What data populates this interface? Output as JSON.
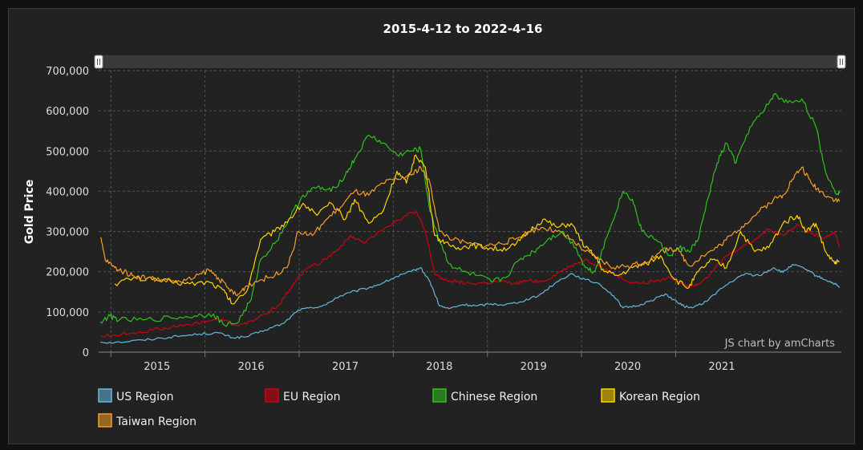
{
  "chart_data": {
    "type": "line",
    "title": "2015-4-12 to 2022-4-16",
    "ylabel": "Gold Price",
    "xlabel": "",
    "ylim": [
      0,
      700000
    ],
    "y_ticks": [
      0,
      100000,
      200000,
      300000,
      400000,
      500000,
      600000,
      700000
    ],
    "y_tick_labels": [
      "0",
      "100,000",
      "200,000",
      "300,000",
      "400,000",
      "500,000",
      "600,000",
      "700,000"
    ],
    "x_ticks": [
      "2015",
      "2016",
      "2017",
      "2018",
      "2019",
      "2020",
      "2021"
    ],
    "grid": true,
    "legend_position": "bottom",
    "credit": "JS chart by amCharts",
    "series": [
      {
        "name": "US Region",
        "color": "#67b7dc",
        "points": [
          [
            2014.85,
            25000
          ],
          [
            2015.0,
            24000
          ],
          [
            2015.3,
            30000
          ],
          [
            2015.5,
            35000
          ],
          [
            2015.7,
            40000
          ],
          [
            2015.9,
            45000
          ],
          [
            2016.1,
            48000
          ],
          [
            2016.25,
            36000
          ],
          [
            2016.4,
            38000
          ],
          [
            2016.6,
            55000
          ],
          [
            2016.8,
            72000
          ],
          [
            2016.95,
            105000
          ],
          [
            2017.1,
            110000
          ],
          [
            2017.25,
            118000
          ],
          [
            2017.35,
            135000
          ],
          [
            2017.5,
            148000
          ],
          [
            2017.7,
            160000
          ],
          [
            2017.85,
            172000
          ],
          [
            2018.0,
            188000
          ],
          [
            2018.15,
            200000
          ],
          [
            2018.25,
            210000
          ],
          [
            2018.35,
            175000
          ],
          [
            2018.45,
            115000
          ],
          [
            2018.55,
            108000
          ],
          [
            2018.7,
            118000
          ],
          [
            2018.85,
            115000
          ],
          [
            2019.0,
            120000
          ],
          [
            2019.15,
            118000
          ],
          [
            2019.3,
            125000
          ],
          [
            2019.5,
            140000
          ],
          [
            2019.7,
            175000
          ],
          [
            2019.85,
            195000
          ],
          [
            2020.0,
            180000
          ],
          [
            2020.15,
            170000
          ],
          [
            2020.3,
            140000
          ],
          [
            2020.4,
            110000
          ],
          [
            2020.55,
            115000
          ],
          [
            2020.7,
            128000
          ],
          [
            2020.85,
            145000
          ],
          [
            2021.0,
            120000
          ],
          [
            2021.1,
            110000
          ],
          [
            2021.25,
            120000
          ],
          [
            2021.4,
            150000
          ],
          [
            2021.55,
            175000
          ],
          [
            2021.7,
            195000
          ],
          [
            2021.85,
            190000
          ],
          [
            2022.0,
            210000
          ],
          [
            2022.1,
            198000
          ],
          [
            2022.2,
            218000
          ],
          [
            2022.35,
            205000
          ],
          [
            2022.45,
            190000
          ],
          [
            2022.55,
            180000
          ],
          [
            2022.65,
            170000
          ],
          [
            2022.7,
            160000
          ]
        ]
      },
      {
        "name": "EU Region",
        "color": "#d1000f",
        "points": [
          [
            2014.85,
            40000
          ],
          [
            2015.0,
            42000
          ],
          [
            2015.2,
            48000
          ],
          [
            2015.4,
            55000
          ],
          [
            2015.6,
            62000
          ],
          [
            2015.8,
            68000
          ],
          [
            2016.0,
            78000
          ],
          [
            2016.15,
            82000
          ],
          [
            2016.25,
            68000
          ],
          [
            2016.4,
            70000
          ],
          [
            2016.6,
            95000
          ],
          [
            2016.75,
            118000
          ],
          [
            2016.9,
            170000
          ],
          [
            2017.05,
            210000
          ],
          [
            2017.2,
            225000
          ],
          [
            2017.35,
            250000
          ],
          [
            2017.5,
            290000
          ],
          [
            2017.65,
            270000
          ],
          [
            2017.8,
            300000
          ],
          [
            2017.95,
            320000
          ],
          [
            2018.1,
            340000
          ],
          [
            2018.2,
            350000
          ],
          [
            2018.3,
            300000
          ],
          [
            2018.4,
            195000
          ],
          [
            2018.5,
            180000
          ],
          [
            2018.65,
            175000
          ],
          [
            2018.8,
            170000
          ],
          [
            2018.95,
            172000
          ],
          [
            2019.1,
            175000
          ],
          [
            2019.25,
            170000
          ],
          [
            2019.4,
            178000
          ],
          [
            2019.55,
            175000
          ],
          [
            2019.7,
            195000
          ],
          [
            2019.85,
            215000
          ],
          [
            2020.0,
            230000
          ],
          [
            2020.15,
            215000
          ],
          [
            2020.3,
            195000
          ],
          [
            2020.45,
            175000
          ],
          [
            2020.6,
            170000
          ],
          [
            2020.75,
            178000
          ],
          [
            2020.9,
            185000
          ],
          [
            2021.0,
            175000
          ],
          [
            2021.1,
            165000
          ],
          [
            2021.2,
            170000
          ],
          [
            2021.35,
            200000
          ],
          [
            2021.5,
            240000
          ],
          [
            2021.65,
            260000
          ],
          [
            2021.8,
            280000
          ],
          [
            2021.95,
            305000
          ],
          [
            2022.1,
            290000
          ],
          [
            2022.25,
            318000
          ],
          [
            2022.4,
            295000
          ],
          [
            2022.55,
            285000
          ],
          [
            2022.65,
            300000
          ],
          [
            2022.7,
            260000
          ]
        ]
      },
      {
        "name": "Chinese Region",
        "color": "#2ec21b",
        "points": [
          [
            2014.85,
            75000
          ],
          [
            2014.95,
            90000
          ],
          [
            2015.05,
            80000
          ],
          [
            2015.3,
            80000
          ],
          [
            2015.6,
            85000
          ],
          [
            2015.85,
            90000
          ],
          [
            2016.05,
            95000
          ],
          [
            2016.15,
            70000
          ],
          [
            2016.3,
            72000
          ],
          [
            2016.45,
            130000
          ],
          [
            2016.55,
            230000
          ],
          [
            2016.7,
            270000
          ],
          [
            2016.85,
            330000
          ],
          [
            2017.0,
            390000
          ],
          [
            2017.15,
            410000
          ],
          [
            2017.3,
            400000
          ],
          [
            2017.45,
            440000
          ],
          [
            2017.55,
            480000
          ],
          [
            2017.7,
            540000
          ],
          [
            2017.85,
            520000
          ],
          [
            2018.0,
            490000
          ],
          [
            2018.15,
            500000
          ],
          [
            2018.25,
            505000
          ],
          [
            2018.35,
            350000
          ],
          [
            2018.45,
            280000
          ],
          [
            2018.55,
            220000
          ],
          [
            2018.7,
            200000
          ],
          [
            2018.85,
            190000
          ],
          [
            2019.0,
            175000
          ],
          [
            2019.15,
            185000
          ],
          [
            2019.3,
            230000
          ],
          [
            2019.45,
            250000
          ],
          [
            2019.6,
            280000
          ],
          [
            2019.75,
            300000
          ],
          [
            2019.9,
            260000
          ],
          [
            2020.0,
            210000
          ],
          [
            2020.1,
            200000
          ],
          [
            2020.25,
            300000
          ],
          [
            2020.4,
            400000
          ],
          [
            2020.5,
            380000
          ],
          [
            2020.6,
            300000
          ],
          [
            2020.75,
            280000
          ],
          [
            2020.9,
            240000
          ],
          [
            2021.0,
            260000
          ],
          [
            2021.1,
            250000
          ],
          [
            2021.2,
            280000
          ],
          [
            2021.3,
            380000
          ],
          [
            2021.4,
            470000
          ],
          [
            2021.5,
            520000
          ],
          [
            2021.6,
            470000
          ],
          [
            2021.75,
            560000
          ],
          [
            2021.9,
            600000
          ],
          [
            2022.0,
            640000
          ],
          [
            2022.15,
            620000
          ],
          [
            2022.3,
            630000
          ],
          [
            2022.45,
            560000
          ],
          [
            2022.55,
            450000
          ],
          [
            2022.65,
            400000
          ],
          [
            2022.7,
            395000
          ]
        ]
      },
      {
        "name": "Korean Region",
        "color": "#fdd400",
        "points": [
          [
            2015.0,
            170000
          ],
          [
            2015.2,
            185000
          ],
          [
            2015.4,
            180000
          ],
          [
            2015.6,
            175000
          ],
          [
            2015.8,
            170000
          ],
          [
            2016.0,
            175000
          ],
          [
            2016.15,
            155000
          ],
          [
            2016.25,
            120000
          ],
          [
            2016.4,
            150000
          ],
          [
            2016.55,
            280000
          ],
          [
            2016.7,
            300000
          ],
          [
            2016.85,
            330000
          ],
          [
            2017.0,
            370000
          ],
          [
            2017.15,
            340000
          ],
          [
            2017.3,
            370000
          ],
          [
            2017.45,
            330000
          ],
          [
            2017.55,
            380000
          ],
          [
            2017.7,
            320000
          ],
          [
            2017.85,
            350000
          ],
          [
            2018.0,
            450000
          ],
          [
            2018.1,
            420000
          ],
          [
            2018.2,
            490000
          ],
          [
            2018.3,
            460000
          ],
          [
            2018.4,
            290000
          ],
          [
            2018.5,
            270000
          ],
          [
            2018.65,
            260000
          ],
          [
            2018.8,
            265000
          ],
          [
            2018.95,
            260000
          ],
          [
            2019.1,
            255000
          ],
          [
            2019.25,
            265000
          ],
          [
            2019.4,
            300000
          ],
          [
            2019.55,
            330000
          ],
          [
            2019.7,
            310000
          ],
          [
            2019.85,
            320000
          ],
          [
            2020.0,
            260000
          ],
          [
            2020.1,
            240000
          ],
          [
            2020.2,
            200000
          ],
          [
            2020.35,
            190000
          ],
          [
            2020.5,
            210000
          ],
          [
            2020.65,
            220000
          ],
          [
            2020.8,
            240000
          ],
          [
            2020.95,
            180000
          ],
          [
            2021.1,
            160000
          ],
          [
            2021.2,
            200000
          ],
          [
            2021.35,
            230000
          ],
          [
            2021.5,
            210000
          ],
          [
            2021.65,
            300000
          ],
          [
            2021.8,
            250000
          ],
          [
            2021.95,
            260000
          ],
          [
            2022.1,
            320000
          ],
          [
            2022.25,
            340000
          ],
          [
            2022.35,
            300000
          ],
          [
            2022.45,
            320000
          ],
          [
            2022.55,
            250000
          ],
          [
            2022.65,
            220000
          ],
          [
            2022.7,
            225000
          ]
        ]
      },
      {
        "name": "Taiwan Region",
        "color": "#f69e2c",
        "points": [
          [
            2014.85,
            285000
          ],
          [
            2014.9,
            230000
          ],
          [
            2015.0,
            210000
          ],
          [
            2015.1,
            200000
          ],
          [
            2015.2,
            190000
          ],
          [
            2015.35,
            185000
          ],
          [
            2015.5,
            180000
          ],
          [
            2015.7,
            175000
          ],
          [
            2015.85,
            185000
          ],
          [
            2016.0,
            205000
          ],
          [
            2016.1,
            185000
          ],
          [
            2016.2,
            160000
          ],
          [
            2016.3,
            140000
          ],
          [
            2016.4,
            165000
          ],
          [
            2016.55,
            180000
          ],
          [
            2016.7,
            190000
          ],
          [
            2016.85,
            220000
          ],
          [
            2016.95,
            300000
          ],
          [
            2017.1,
            290000
          ],
          [
            2017.25,
            330000
          ],
          [
            2017.4,
            360000
          ],
          [
            2017.55,
            400000
          ],
          [
            2017.7,
            390000
          ],
          [
            2017.85,
            420000
          ],
          [
            2018.0,
            430000
          ],
          [
            2018.15,
            440000
          ],
          [
            2018.25,
            460000
          ],
          [
            2018.35,
            420000
          ],
          [
            2018.45,
            300000
          ],
          [
            2018.6,
            280000
          ],
          [
            2018.75,
            270000
          ],
          [
            2018.95,
            265000
          ],
          [
            2019.1,
            270000
          ],
          [
            2019.25,
            280000
          ],
          [
            2019.4,
            300000
          ],
          [
            2019.55,
            310000
          ],
          [
            2019.7,
            300000
          ],
          [
            2019.85,
            280000
          ],
          [
            2020.0,
            250000
          ],
          [
            2020.15,
            230000
          ],
          [
            2020.3,
            210000
          ],
          [
            2020.45,
            215000
          ],
          [
            2020.6,
            220000
          ],
          [
            2020.75,
            240000
          ],
          [
            2020.9,
            260000
          ],
          [
            2021.0,
            250000
          ],
          [
            2021.1,
            215000
          ],
          [
            2021.25,
            240000
          ],
          [
            2021.4,
            260000
          ],
          [
            2021.55,
            290000
          ],
          [
            2021.7,
            320000
          ],
          [
            2021.85,
            350000
          ],
          [
            2022.0,
            380000
          ],
          [
            2022.1,
            390000
          ],
          [
            2022.2,
            430000
          ],
          [
            2022.3,
            460000
          ],
          [
            2022.4,
            420000
          ],
          [
            2022.5,
            400000
          ],
          [
            2022.6,
            385000
          ],
          [
            2022.7,
            375000
          ]
        ]
      }
    ]
  }
}
